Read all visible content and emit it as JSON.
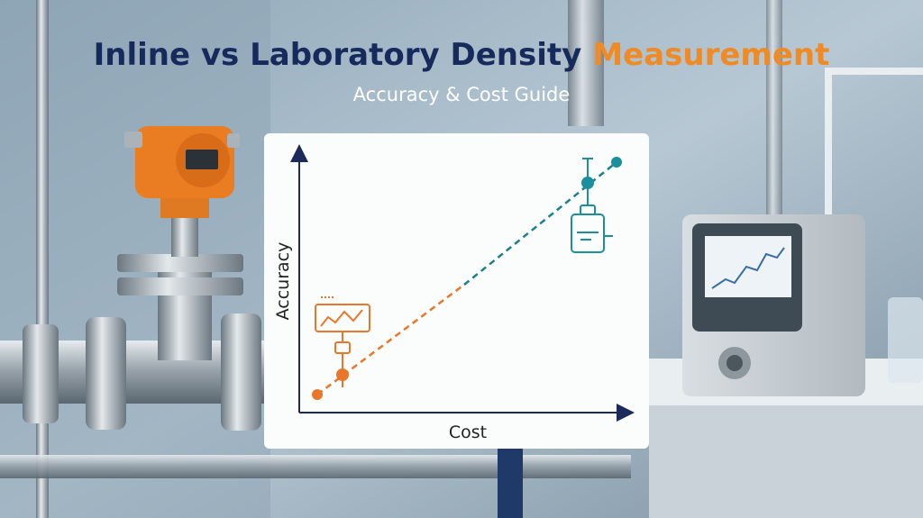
{
  "header": {
    "title_main": "Inline vs Laboratory Density",
    "title_accent": "Measurement",
    "subtitle": "Accuracy & Cost Guide"
  },
  "diagram": {
    "y_axis_label": "Accuracy",
    "x_axis_label": "Cost"
  }
}
